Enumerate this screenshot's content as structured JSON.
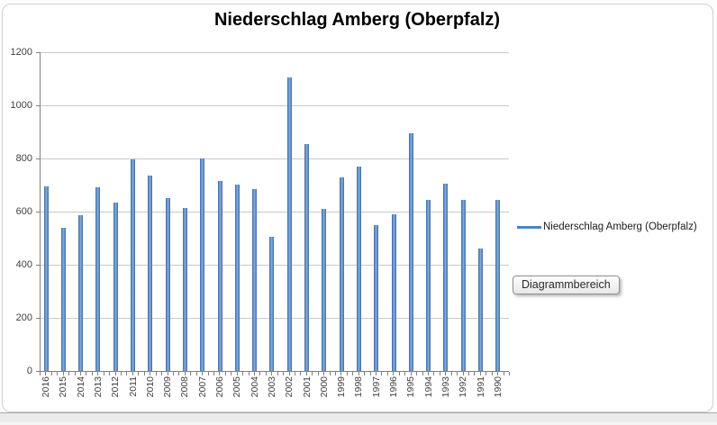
{
  "tooltip": {
    "label": "Diagrammbereich"
  },
  "legend": {
    "position": "right",
    "items": [
      {
        "label": "Niederschlag Amberg (Oberpfalz)",
        "marker": "line"
      }
    ]
  },
  "chart_data": {
    "type": "bar",
    "title": "Niederschlag Amberg (Oberpfalz)",
    "xlabel": "",
    "ylabel": "",
    "categories": [
      "2016",
      "2015",
      "2014",
      "2013",
      "2012",
      "2011",
      "2010",
      "2009",
      "2008",
      "2007",
      "2006",
      "2005",
      "2004",
      "2003",
      "2002",
      "2001",
      "2000",
      "1999",
      "1998",
      "1997",
      "1996",
      "1995",
      "1994",
      "1993",
      "1992",
      "1991",
      "1990"
    ],
    "values": [
      695,
      540,
      585,
      690,
      635,
      795,
      735,
      650,
      615,
      800,
      715,
      700,
      685,
      505,
      1105,
      855,
      610,
      730,
      770,
      550,
      590,
      895,
      645,
      705,
      645,
      460,
      645
    ],
    "series_name": "Niederschlag Amberg (Oberpfalz)",
    "ylim": [
      0,
      1200
    ],
    "yticks": [
      1200,
      1000,
      800,
      600,
      400,
      200,
      0
    ],
    "grid": "horizontal",
    "legend_position": "right",
    "colors": {
      "bar": "#4F81BD",
      "bar_edge": "#41699F",
      "gridline": "#C9C9C9",
      "axis": "#808080",
      "title_text": "#000000",
      "tick_label": "#3F3F3F"
    }
  }
}
